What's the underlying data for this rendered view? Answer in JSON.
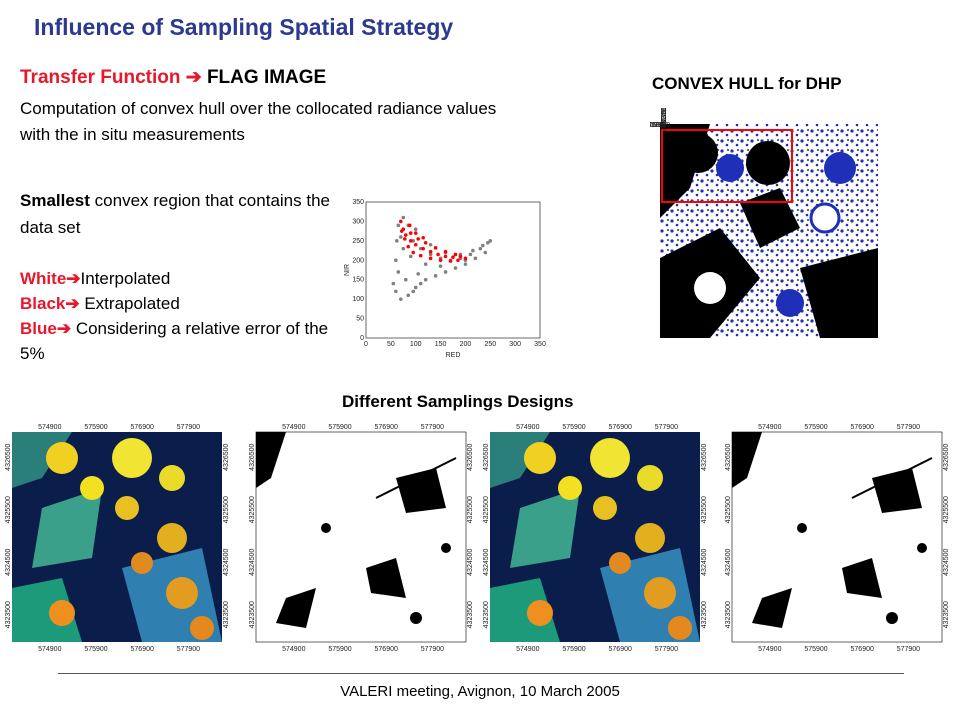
{
  "title": "Influence of Sampling Spatial Strategy",
  "transfer": {
    "prefix": "Transfer Function ",
    "arrow": "➔",
    "suffix": " FLAG IMAGE"
  },
  "description": "Computation of convex hull over the collocated radiance values with the in situ measurements",
  "smallest": {
    "bold": "Smallest",
    "rest": " convex region that contains the data set"
  },
  "legend": [
    {
      "key": "White",
      "arrow": "➔",
      "text": "Interpolated"
    },
    {
      "key": "Black",
      "arrow": "➔",
      "text": " Extrapolated"
    },
    {
      "key": "Blue",
      "arrow": "➔",
      "text": " Considering a relative error of the 5%"
    }
  ],
  "convex_title": "CONVEX HULL for DHP",
  "designs_title": "Different Samplings Designs",
  "footer": "VALERI meeting, Avignon, 10 March 2005",
  "map_ticks": {
    "x": [
      "574900",
      "575900",
      "576900",
      "577900"
    ],
    "y": [
      "4326500",
      "4325500",
      "4324500",
      "4323500"
    ]
  },
  "colors": {
    "title": "#2b3990",
    "accent": "#e8182c",
    "flag_blue": "#1f2fb8",
    "hull": "#ff0000"
  },
  "chart_data": {
    "type": "scatter",
    "title": "",
    "xlabel": "RED",
    "ylabel": "NIR",
    "xlim": [
      0,
      350
    ],
    "ylim": [
      0,
      350
    ],
    "xticks": [
      "0",
      "50",
      "100",
      "150",
      "200",
      "250",
      "300",
      "350"
    ],
    "yticks": [
      "0",
      "50",
      "100",
      "150",
      "200",
      "250",
      "300",
      "350"
    ],
    "series": [
      {
        "name": "",
        "color": "#808080",
        "points": [
          [
            55,
            140
          ],
          [
            60,
            200
          ],
          [
            70,
            260
          ],
          [
            75,
            310
          ],
          [
            85,
            290
          ],
          [
            95,
            250
          ],
          [
            110,
            230
          ],
          [
            130,
            215
          ],
          [
            150,
            205
          ],
          [
            170,
            200
          ],
          [
            190,
            205
          ],
          [
            210,
            215
          ],
          [
            230,
            230
          ],
          [
            245,
            245
          ],
          [
            250,
            250
          ],
          [
            240,
            220
          ],
          [
            220,
            205
          ],
          [
            200,
            190
          ],
          [
            180,
            180
          ],
          [
            160,
            170
          ],
          [
            140,
            160
          ],
          [
            120,
            150
          ],
          [
            100,
            130
          ],
          [
            85,
            110
          ],
          [
            70,
            100
          ],
          [
            60,
            120
          ],
          [
            65,
            170
          ],
          [
            90,
            210
          ],
          [
            120,
            190
          ],
          [
            150,
            185
          ],
          [
            200,
            200
          ],
          [
            105,
            165
          ],
          [
            80,
            150
          ],
          [
            95,
            120
          ],
          [
            110,
            140
          ],
          [
            75,
            230
          ],
          [
            65,
            290
          ],
          [
            62,
            250
          ],
          [
            100,
            280
          ],
          [
            130,
            240
          ],
          [
            160,
            220
          ],
          [
            190,
            215
          ],
          [
            215,
            225
          ],
          [
            235,
            238
          ]
        ]
      },
      {
        "name": "",
        "color": "#ff0000",
        "points": [
          [
            70,
            300
          ],
          [
            75,
            280
          ],
          [
            80,
            265
          ],
          [
            90,
            250
          ],
          [
            100,
            240
          ],
          [
            115,
            230
          ],
          [
            130,
            222
          ],
          [
            145,
            215
          ],
          [
            160,
            210
          ],
          [
            175,
            208
          ],
          [
            190,
            210
          ],
          [
            200,
            205
          ],
          [
            185,
            200
          ],
          [
            170,
            198
          ],
          [
            150,
            200
          ],
          [
            130,
            205
          ],
          [
            110,
            212
          ],
          [
            95,
            220
          ],
          [
            85,
            235
          ],
          [
            78,
            255
          ],
          [
            72,
            275
          ],
          [
            90,
            270
          ],
          [
            105,
            255
          ],
          [
            120,
            245
          ],
          [
            140,
            232
          ],
          [
            160,
            222
          ],
          [
            180,
            215
          ],
          [
            88,
            290
          ],
          [
            100,
            270
          ],
          [
            115,
            258
          ]
        ]
      }
    ]
  }
}
